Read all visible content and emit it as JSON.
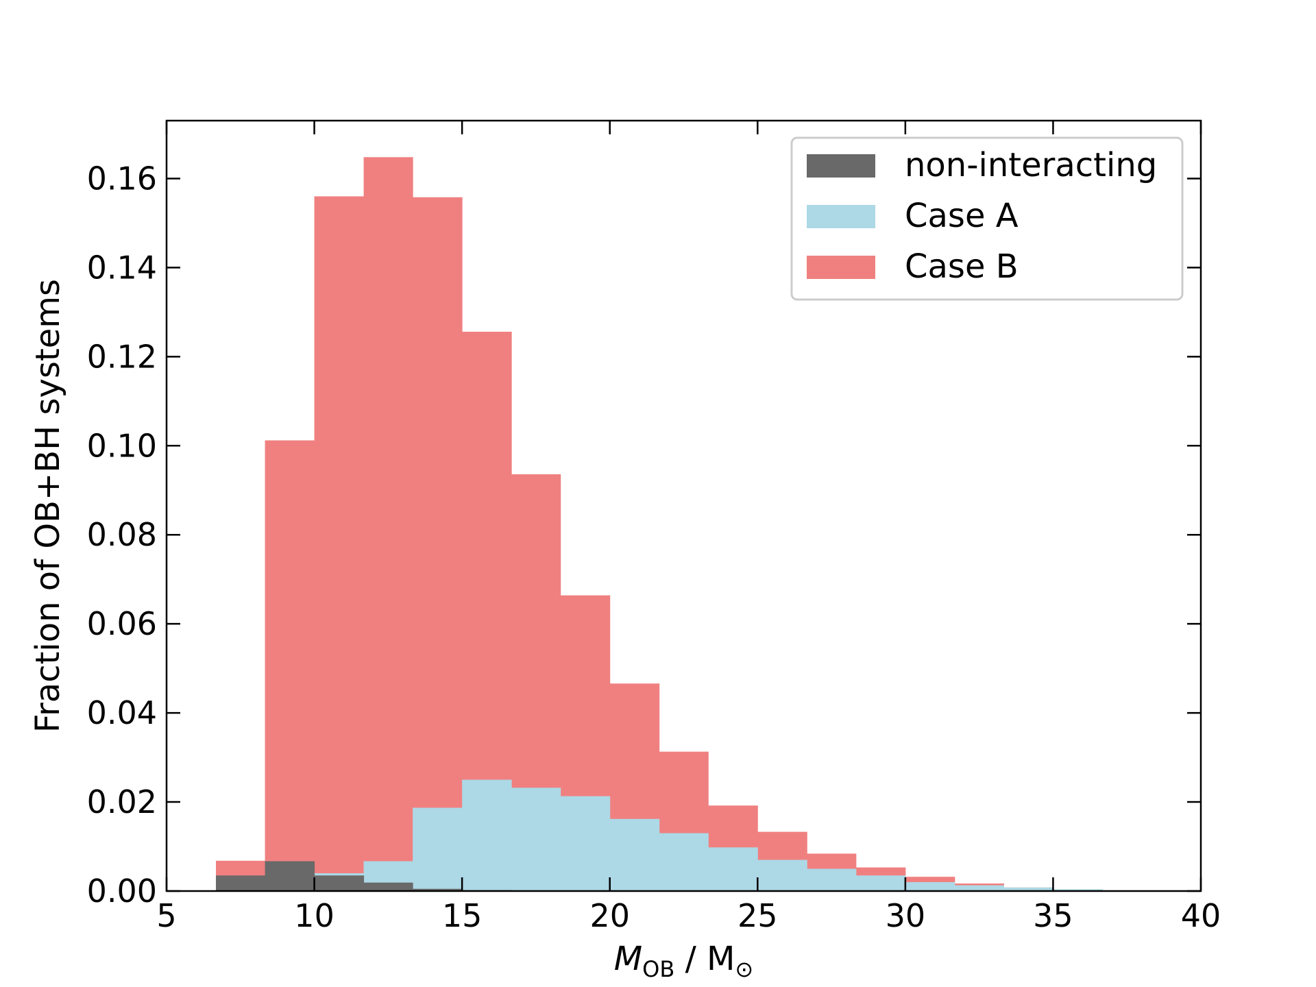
{
  "chart_data": {
    "type": "bar",
    "stacked": false,
    "title": "",
    "xlabel": {
      "italic": "M",
      "sub": "OB",
      "rest": " / M",
      "sym": "⊙"
    },
    "ylabel": "Fraction of OB+BH systems",
    "xlim": [
      5,
      40
    ],
    "ylim": [
      0,
      0.173
    ],
    "xticks": [
      "5",
      "10",
      "15",
      "20",
      "25",
      "30",
      "35",
      "40"
    ],
    "xtick_values": [
      5,
      10,
      15,
      20,
      25,
      30,
      35,
      40
    ],
    "yticks": [
      "0.00",
      "0.02",
      "0.04",
      "0.06",
      "0.08",
      "0.10",
      "0.12",
      "0.14",
      "0.16"
    ],
    "ytick_values": [
      0,
      0.02,
      0.04,
      0.06,
      0.08,
      0.1,
      0.12,
      0.14,
      0.16
    ],
    "grid": false,
    "legend_position": "top-right",
    "bin_edges": [
      6.67,
      8.33,
      10.0,
      11.67,
      13.33,
      15.0,
      16.67,
      18.33,
      20.0,
      21.67,
      23.33,
      25.0,
      26.67,
      28.33,
      30.0,
      31.67,
      33.33,
      35.0,
      36.67,
      38.33
    ],
    "series": [
      {
        "name": "Case B",
        "color": "#f08080",
        "values": [
          0.0068,
          0.1012,
          0.156,
          0.1648,
          0.1558,
          0.1256,
          0.0936,
          0.0664,
          0.0466,
          0.0313,
          0.0192,
          0.0133,
          0.0084,
          0.0053,
          0.0032,
          0.0017,
          0.0008,
          0.0003,
          0.0001
        ]
      },
      {
        "name": "Case A",
        "color": "#add8e6",
        "values": [
          0.0,
          0.0,
          0.004,
          0.0067,
          0.0187,
          0.025,
          0.0232,
          0.0213,
          0.0162,
          0.013,
          0.0098,
          0.007,
          0.005,
          0.0035,
          0.002,
          0.0013,
          0.0008,
          0.0004,
          0.0001
        ]
      },
      {
        "name": "non-interacting",
        "color": "#696969",
        "values": [
          0.0035,
          0.0067,
          0.0035,
          0.0019,
          0.0005,
          0.0002,
          0.0,
          0.0,
          0.0,
          0.0,
          0.0,
          0.0,
          0.0,
          0.0,
          0.0,
          0.0,
          0.0,
          0.0,
          0.0
        ]
      }
    ],
    "legend_order": [
      "non-interacting",
      "Case A",
      "Case B"
    ]
  }
}
